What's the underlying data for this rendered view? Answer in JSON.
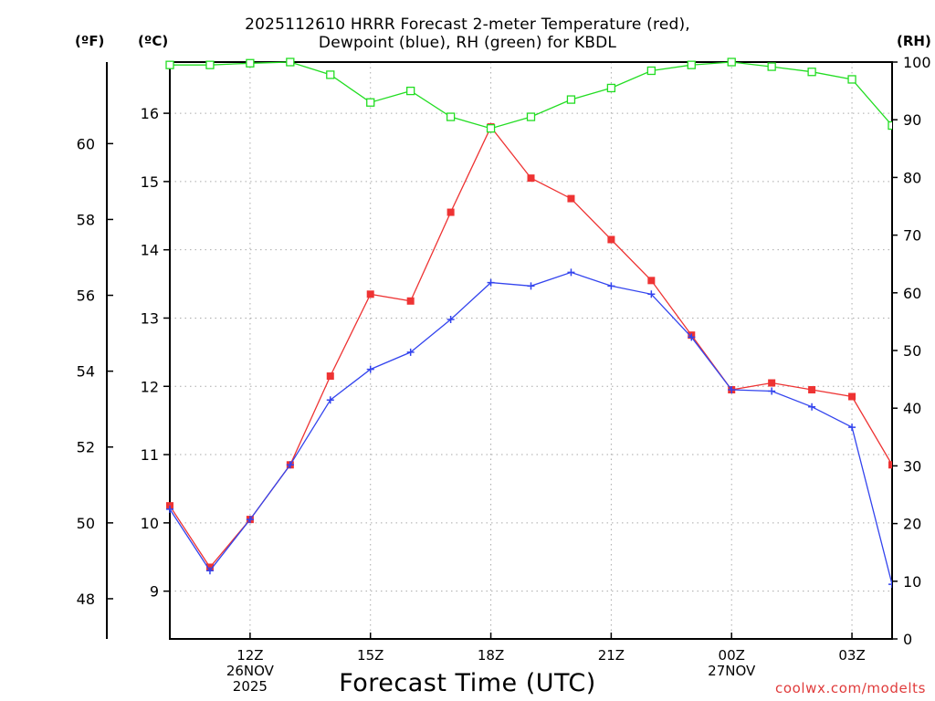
{
  "title_lines": [
    "2025112610 HRRR Forecast 2-meter Temperature (red),",
    "Dewpoint (blue), RH (green) for KBDL"
  ],
  "units": {
    "fahrenheit": "(ºF)",
    "celsius": "(ºC)",
    "rh": "(RH)"
  },
  "xlabel": "Forecast Time (UTC)",
  "credit": "coolwx.com/modelts",
  "colors": {
    "temperature": "#ee3333",
    "dewpoint": "#3344ee",
    "rh": "#22dd22",
    "grid": "#aaaaaa"
  },
  "chart_data": {
    "type": "line",
    "title": "2025112610 HRRR Forecast 2-meter Temperature (red), Dewpoint (blue), RH (green) for KBDL",
    "xlabel": "Forecast Time (UTC)",
    "x_hours": [
      10,
      11,
      12,
      13,
      14,
      15,
      16,
      17,
      18,
      19,
      20,
      21,
      22,
      23,
      24,
      25,
      26,
      27,
      28
    ],
    "x_range": [
      10,
      28
    ],
    "x_ticks": [
      {
        "hour": 12,
        "lines": [
          "12Z",
          "26NOV",
          "2025"
        ]
      },
      {
        "hour": 15,
        "lines": [
          "15Z"
        ]
      },
      {
        "hour": 18,
        "lines": [
          "18Z"
        ]
      },
      {
        "hour": 21,
        "lines": [
          "21Z"
        ]
      },
      {
        "hour": 24,
        "lines": [
          "00Z",
          "27NOV"
        ]
      },
      {
        "hour": 27,
        "lines": [
          "03Z"
        ]
      }
    ],
    "y_left_celsius": {
      "range": [
        8.3,
        16.75
      ],
      "ticks": [
        9,
        10,
        11,
        12,
        13,
        14,
        15,
        16
      ]
    },
    "y_left_fahrenheit": {
      "ticks": [
        48,
        50,
        52,
        54,
        56,
        58,
        60
      ]
    },
    "y_right_rh": {
      "range": [
        0,
        100
      ],
      "ticks": [
        0,
        10,
        20,
        30,
        40,
        50,
        60,
        70,
        80,
        90,
        100
      ]
    },
    "series": [
      {
        "name": "Temperature",
        "unit": "C",
        "marker": "filled-square",
        "values": [
          10.25,
          9.35,
          10.05,
          10.85,
          12.15,
          13.35,
          13.25,
          14.55,
          15.8,
          15.05,
          14.75,
          14.15,
          13.55,
          12.75,
          11.95,
          12.05,
          11.95,
          11.85,
          10.85
        ]
      },
      {
        "name": "Dewpoint",
        "unit": "C",
        "marker": "plus",
        "values": [
          10.2,
          9.3,
          10.05,
          10.85,
          11.8,
          12.25,
          12.5,
          12.98,
          13.52,
          13.47,
          13.67,
          13.47,
          13.35,
          12.72,
          11.95,
          11.93,
          11.7,
          11.4,
          9.1
        ]
      },
      {
        "name": "RH",
        "unit": "%",
        "marker": "open-square",
        "values": [
          99.5,
          99.5,
          99.8,
          100,
          97.8,
          93,
          95,
          90.5,
          88.5,
          90.5,
          93.5,
          95.5,
          98.5,
          99.5,
          100,
          99.2,
          98.3,
          97,
          89
        ]
      }
    ]
  }
}
